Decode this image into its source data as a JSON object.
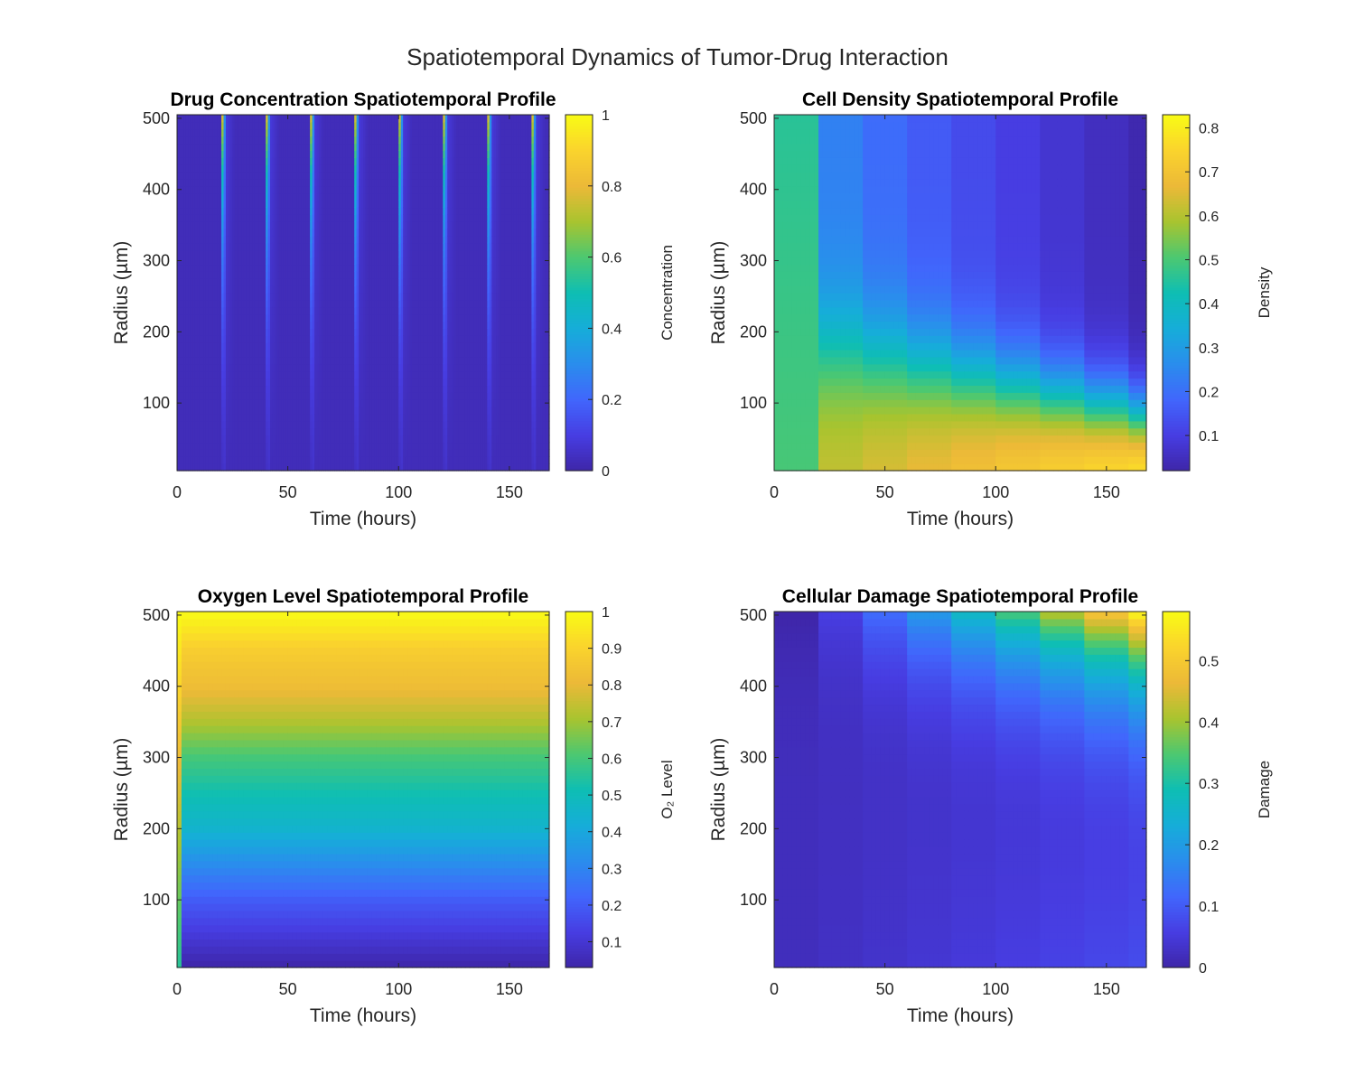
{
  "figure_title": "Spatiotemporal Dynamics of Tumor-Drug Interaction",
  "chart_data": [
    {
      "type": "heatmap",
      "id": "drug",
      "title": "Drug Concentration Spatiotemporal Profile",
      "xlabel": "Time (hours)",
      "ylabel": "Radius (µm)",
      "colorbar_label": "Concentration",
      "xlim": [
        0,
        168
      ],
      "ylim": [
        5,
        505
      ],
      "xticks": [
        0,
        50,
        100,
        150
      ],
      "yticks": [
        100,
        200,
        300,
        400,
        500
      ],
      "clim": [
        0,
        1
      ],
      "cticks": [
        0,
        0.2,
        0.4,
        0.6,
        0.8,
        1
      ],
      "colormap": "parula",
      "dose_times": [
        20,
        40,
        60,
        80,
        100,
        120,
        140,
        160
      ],
      "peak_concentration": 1,
      "background_concentration": 0.03
    },
    {
      "type": "heatmap",
      "id": "density",
      "title": "Cell Density Spatiotemporal Profile",
      "xlabel": "Time (hours)",
      "ylabel": "Radius (µm)",
      "colorbar_label": "Density",
      "xlim": [
        0,
        168
      ],
      "ylim": [
        5,
        505
      ],
      "xticks": [
        0,
        50,
        100,
        150
      ],
      "yticks": [
        100,
        200,
        300,
        400,
        500
      ],
      "clim": [
        0.02,
        0.83
      ],
      "cticks": [
        0.1,
        0.2,
        0.3,
        0.4,
        0.5,
        0.6,
        0.7,
        0.8
      ],
      "colormap": "parula",
      "segment_starts": [
        0,
        20,
        40,
        60,
        80,
        100,
        120,
        140,
        160
      ],
      "initial_density": 0.48,
      "core_max_density": 0.83,
      "rim_min_density": 0.03
    },
    {
      "type": "heatmap",
      "id": "oxygen",
      "title": "Oxygen Level Spatiotemporal Profile",
      "xlabel": "Time (hours)",
      "ylabel": "Radius (µm)",
      "colorbar_label": "O₂ Level",
      "xlim": [
        0,
        168
      ],
      "ylim": [
        5,
        505
      ],
      "xticks": [
        0,
        50,
        100,
        150
      ],
      "yticks": [
        100,
        200,
        300,
        400,
        500
      ],
      "clim": [
        0.03,
        1
      ],
      "cticks": [
        0.1,
        0.2,
        0.3,
        0.4,
        0.5,
        0.6,
        0.7,
        0.8,
        0.9,
        1
      ],
      "colormap": "parula",
      "radial_profile": [
        [
          5,
          0.03
        ],
        [
          100,
          0.2
        ],
        [
          150,
          0.32
        ],
        [
          200,
          0.45
        ],
        [
          250,
          0.52
        ],
        [
          300,
          0.6
        ],
        [
          350,
          0.72
        ],
        [
          400,
          0.82
        ],
        [
          450,
          0.88
        ],
        [
          505,
          1.0
        ]
      ]
    },
    {
      "type": "heatmap",
      "id": "damage",
      "title": "Cellular Damage Spatiotemporal Profile",
      "xlabel": "Time (hours)",
      "ylabel": "Radius (µm)",
      "colorbar_label": "Damage",
      "xlim": [
        0,
        168
      ],
      "ylim": [
        5,
        505
      ],
      "xticks": [
        0,
        50,
        100,
        150
      ],
      "yticks": [
        100,
        200,
        300,
        400,
        500
      ],
      "clim": [
        0,
        0.58
      ],
      "cticks": [
        0,
        0.1,
        0.2,
        0.3,
        0.4,
        0.5
      ],
      "colormap": "parula",
      "segment_starts": [
        0,
        20,
        40,
        60,
        80,
        100,
        120,
        140,
        160
      ],
      "max_damage": 0.58
    }
  ]
}
